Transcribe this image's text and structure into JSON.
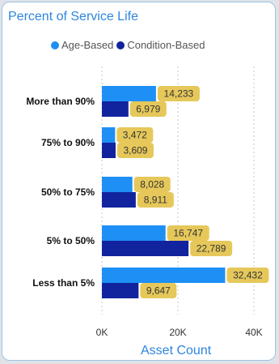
{
  "card": {
    "title": "Percent of Service Life",
    "xlabel": "Asset Count"
  },
  "colors": {
    "age": "#1e90f5",
    "condition": "#12239e",
    "label_bg": "#e6c85a",
    "grid": "#c8c8c8",
    "title": "#2e86de"
  },
  "chart_data": {
    "type": "bar",
    "orientation": "horizontal",
    "title": "Percent of Service Life",
    "xlabel": "Asset Count",
    "ylabel": "",
    "categories": [
      "More than 90%",
      "75% to 90%",
      "50% to 75%",
      "5% to 50%",
      "Less than 5%"
    ],
    "series": [
      {
        "name": "Age-Based",
        "color": "#1e90f5",
        "values": [
          14233,
          3472,
          8028,
          16747,
          32432
        ],
        "labels": [
          "14,233",
          "3,472",
          "8,028",
          "16,747",
          "32,432"
        ]
      },
      {
        "name": "Condition-Based",
        "color": "#12239e",
        "values": [
          6979,
          3609,
          8911,
          22789,
          9647
        ],
        "labels": [
          "6,979",
          "3,609",
          "8,911",
          "22,789",
          "9,647"
        ]
      }
    ],
    "xlim": [
      0,
      40000
    ],
    "xticks": [
      0,
      20000,
      40000
    ],
    "xtick_labels": [
      "0K",
      "20K",
      "40K"
    ],
    "grid": true,
    "legend_position": "top"
  }
}
